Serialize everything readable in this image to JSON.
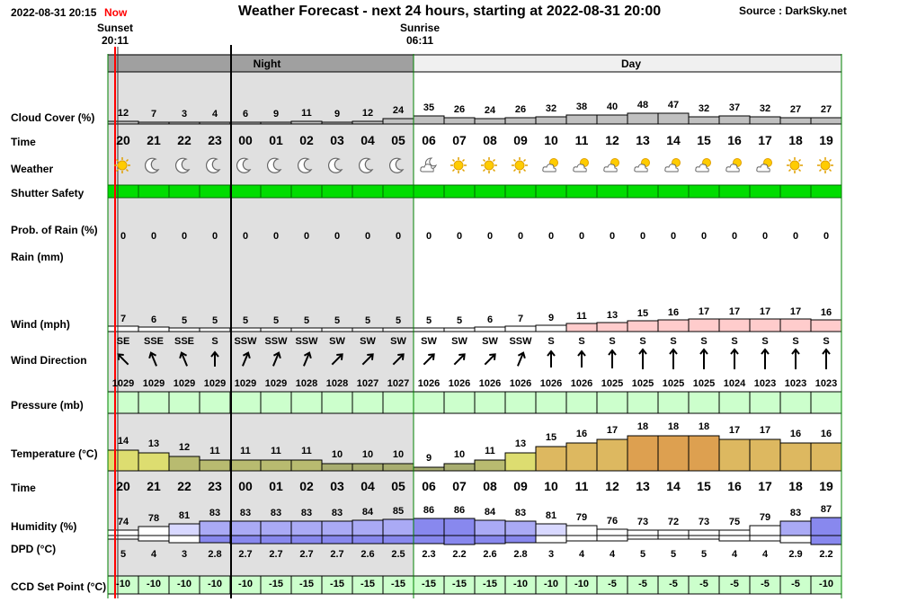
{
  "header": {
    "timestamp": "2022-08-31 20:15",
    "now_label": "Now",
    "title": "Weather Forecast - next 24 hours, starting at 2022-08-31 20:00",
    "source": "Source : DarkSky.net",
    "sunset_label": "Sunset",
    "sunset_time": "20:11",
    "sunrise_label": "Sunrise",
    "sunrise_time": "06:11",
    "night_label": "Night",
    "day_label": "Day"
  },
  "labels": {
    "cloud_cover": "Cloud Cover (%)",
    "time": "Time",
    "weather": "Weather",
    "shutter_safety": "Shutter Safety",
    "prob_rain": "Prob. of Rain (%)",
    "rain": "Rain (mm)",
    "wind": "Wind (mph)",
    "wind_direction": "Wind Direction",
    "pressure": "Pressure (mb)",
    "temperature": "Temperature (°C)",
    "time2": "Time",
    "humidity": "Humidity (%)",
    "dpd": "DPD (°C)",
    "ccd": "CCD Set Point (°C)"
  },
  "hours": [
    "20",
    "21",
    "22",
    "23",
    "00",
    "01",
    "02",
    "03",
    "04",
    "05",
    "06",
    "07",
    "08",
    "09",
    "10",
    "11",
    "12",
    "13",
    "14",
    "15",
    "16",
    "17",
    "18",
    "19"
  ],
  "is_night": [
    true,
    true,
    true,
    true,
    true,
    true,
    true,
    true,
    true,
    true,
    false,
    false,
    false,
    false,
    false,
    false,
    false,
    false,
    false,
    false,
    false,
    false,
    false,
    false
  ],
  "cloud_cover": [
    "12",
    "7",
    "3",
    "4",
    "6",
    "9",
    "11",
    "9",
    "12",
    "24",
    "35",
    "26",
    "24",
    "26",
    "32",
    "38",
    "40",
    "48",
    "47",
    "32",
    "37",
    "32",
    "27",
    "27"
  ],
  "weather_icons": [
    "sun-icon",
    "moon-icon",
    "moon-icon",
    "moon-icon",
    "moon-icon",
    "moon-icon",
    "moon-icon",
    "moon-icon",
    "moon-icon",
    "moon-icon",
    "partly-cloudy-night-icon",
    "sun-icon",
    "sun-icon",
    "sun-icon",
    "partly-cloudy-day-icon",
    "partly-cloudy-day-icon",
    "partly-cloudy-day-icon",
    "partly-cloudy-day-icon",
    "partly-cloudy-day-icon",
    "partly-cloudy-day-icon",
    "partly-cloudy-day-icon",
    "partly-cloudy-day-icon",
    "sun-icon",
    "sun-icon"
  ],
  "prob_rain": [
    "0",
    "0",
    "0",
    "0",
    "0",
    "0",
    "0",
    "0",
    "0",
    "0",
    "0",
    "0",
    "0",
    "0",
    "0",
    "0",
    "0",
    "0",
    "0",
    "0",
    "0",
    "0",
    "0",
    "0"
  ],
  "wind_speed": [
    "7",
    "6",
    "5",
    "5",
    "5",
    "5",
    "5",
    "5",
    "5",
    "5",
    "5",
    "5",
    "6",
    "7",
    "9",
    "11",
    "13",
    "15",
    "16",
    "17",
    "17",
    "17",
    "17",
    "16"
  ],
  "wind_dir": [
    "SE",
    "SSE",
    "SSE",
    "S",
    "SSW",
    "SSW",
    "SSW",
    "SW",
    "SW",
    "SW",
    "SW",
    "SW",
    "SW",
    "SSW",
    "S",
    "S",
    "S",
    "S",
    "S",
    "S",
    "S",
    "S",
    "S",
    "S"
  ],
  "pressure": [
    "1029",
    "1029",
    "1029",
    "1029",
    "1029",
    "1029",
    "1028",
    "1028",
    "1027",
    "1027",
    "1026",
    "1026",
    "1026",
    "1026",
    "1026",
    "1026",
    "1025",
    "1025",
    "1025",
    "1025",
    "1024",
    "1023",
    "1023",
    "1023"
  ],
  "temperature": [
    "14",
    "13",
    "12",
    "11",
    "11",
    "11",
    "11",
    "10",
    "10",
    "10",
    "9",
    "10",
    "11",
    "13",
    "15",
    "16",
    "17",
    "18",
    "18",
    "18",
    "17",
    "17",
    "16",
    "16"
  ],
  "humidity": [
    "74",
    "78",
    "81",
    "83",
    "83",
    "83",
    "83",
    "83",
    "84",
    "85",
    "86",
    "86",
    "84",
    "83",
    "81",
    "79",
    "76",
    "73",
    "72",
    "73",
    "75",
    "79",
    "83",
    "87"
  ],
  "dpd": [
    "5",
    "4",
    "3",
    "2.8",
    "2.7",
    "2.7",
    "2.7",
    "2.7",
    "2.6",
    "2.5",
    "2.3",
    "2.2",
    "2.6",
    "2.8",
    "3",
    "4",
    "4",
    "5",
    "5",
    "5",
    "4",
    "4",
    "2.9",
    "2.2"
  ],
  "ccd": [
    "-10",
    "-10",
    "-10",
    "-10",
    "-10",
    "-15",
    "-15",
    "-15",
    "-15",
    "-15",
    "-15",
    "-15",
    "-15",
    "-10",
    "-10",
    "-10",
    "-5",
    "-5",
    "-5",
    "-5",
    "-5",
    "-5",
    "-5",
    "-10"
  ],
  "colors": {
    "now_red": "#ff0000",
    "night_bg": "#e0e0e0",
    "band_night": "#a0a0a0",
    "band_day": "#f0f0f0",
    "safety_green": "#00dd00",
    "grid_green": "#008000",
    "pressure_fill": "#ccffcc",
    "ccd_fill": "#ccffcc",
    "cloud_fill": "#c0c0c0",
    "wind_fill": "#ffcccc"
  }
}
